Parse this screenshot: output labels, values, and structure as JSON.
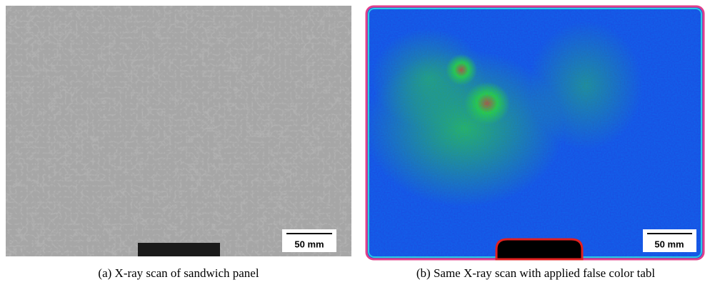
{
  "panels": [
    {
      "scale_bar": "50 mm",
      "caption": "(a) X-ray scan of sandwich panel"
    },
    {
      "scale_bar": "50 mm",
      "caption": "(b) Same X-ray scan with applied false color tabl"
    }
  ]
}
